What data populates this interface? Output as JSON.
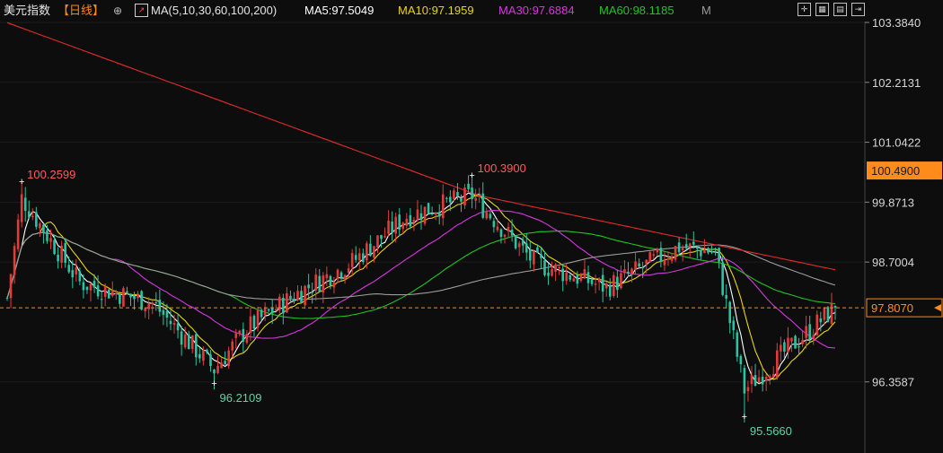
{
  "header": {
    "title": "美元指数",
    "period": "【日线】",
    "ma_label": "MA(5,10,30,60,100,200)",
    "ma5": "MA5:97.5049",
    "ma10": "MA10:97.1959",
    "ma30": "MA30:97.6884",
    "ma60": "MA60:98.1185",
    "m_label": "M",
    "colors": {
      "ma5": "#ffffff",
      "ma10": "#e8d60e",
      "ma30": "#d836e0",
      "ma60": "#22c322",
      "ma100": "#9c9c9c",
      "ma200": "#e22a2a"
    }
  },
  "toolbar": {
    "icons": [
      "expand-icon",
      "layout-icon",
      "chart-icon",
      "exit-icon"
    ]
  },
  "chart_data": {
    "type": "candlestick",
    "title": "美元指数",
    "y_axis_ticks": [
      "103.3840",
      "102.2131",
      "101.0422",
      "99.8713",
      "98.7004",
      "97.8070",
      "96.3587"
    ],
    "ylim": [
      95.3,
      103.5
    ],
    "current_price": "97.8070",
    "price_marker": "100.4900",
    "annotations": [
      {
        "label": "100.2599",
        "index": 4,
        "value": 100.2599,
        "kind": "high"
      },
      {
        "label": "100.3900",
        "index": 128,
        "value": 100.39,
        "kind": "high"
      },
      {
        "label": "96.2109",
        "index": 57,
        "value": 96.2109,
        "kind": "low"
      },
      {
        "label": "95.5660",
        "index": 203,
        "value": 95.566,
        "kind": "low"
      }
    ],
    "candles_count": 229,
    "candles_ohlc_points_index_value": [
      [
        0,
        98.0
      ],
      [
        4,
        99.95
      ],
      [
        20,
        98.3
      ],
      [
        40,
        97.9
      ],
      [
        57,
        96.6
      ],
      [
        66,
        97.4
      ],
      [
        80,
        98.1
      ],
      [
        95,
        98.7
      ],
      [
        110,
        99.6
      ],
      [
        128,
        100.0
      ],
      [
        145,
        98.7
      ],
      [
        165,
        98.2
      ],
      [
        185,
        99.0
      ],
      [
        195,
        98.9
      ],
      [
        200,
        97.2
      ],
      [
        203,
        96.2
      ],
      [
        215,
        97.0
      ],
      [
        228,
        97.81
      ]
    ],
    "ma_lines": [
      {
        "name": "MA5",
        "color": "#ffffff"
      },
      {
        "name": "MA10",
        "color": "#e8d60e"
      },
      {
        "name": "MA30",
        "color": "#d836e0"
      },
      {
        "name": "MA60",
        "color": "#22c322"
      },
      {
        "name": "MA100",
        "color": "#9c9c9c"
      },
      {
        "name": "MA200",
        "color": "#e22a2a"
      }
    ]
  }
}
